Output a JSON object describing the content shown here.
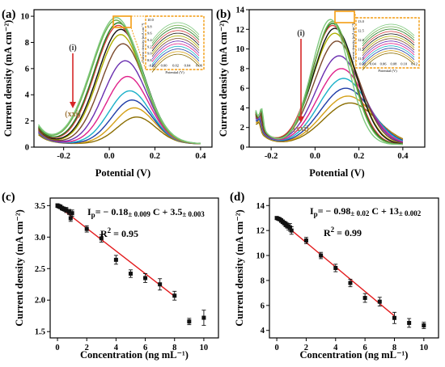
{
  "palette": [
    "#8b6d00",
    "#d4a017",
    "#1f3da8",
    "#1ab0c8",
    "#e0218a",
    "#6a2fb0",
    "#7b4a2c",
    "#b0b000",
    "#111111",
    "#d43c3c",
    "#1f7a1f",
    "#6ab04c",
    "#7fc97f"
  ],
  "fit_color": "#e31a1c",
  "marker_color": "#111111",
  "highlight_color": "#f39c12",
  "arrow_color": "#d62728",
  "arrow_label_color": "#a0783c",
  "panels": [
    {
      "id": "a",
      "label": "(a)",
      "chart_data": {
        "type": "line",
        "xlabel": "Potential (V)",
        "ylabel": "Current density (mA cm⁻²)",
        "xlim": [
          -0.33,
          0.45
        ],
        "ylim": [
          0,
          10.5
        ],
        "xticks": [
          -0.2,
          0,
          0.2,
          0.4
        ],
        "xtick_labels": [
          "-0.2",
          "0.0",
          "0.2",
          "0.4"
        ],
        "yticks": [
          0,
          2,
          4,
          6,
          8,
          10
        ],
        "ytick_labels": [
          "0",
          "2",
          "4",
          "6",
          "8",
          "10"
        ],
        "series_count": 13,
        "series_peaks": [
          {
            "x": 0.12,
            "y": 2.3
          },
          {
            "x": 0.11,
            "y": 3.0
          },
          {
            "x": 0.1,
            "y": 3.6
          },
          {
            "x": 0.09,
            "y": 4.3
          },
          {
            "x": 0.08,
            "y": 5.4
          },
          {
            "x": 0.07,
            "y": 6.6
          },
          {
            "x": 0.06,
            "y": 7.9
          },
          {
            "x": 0.05,
            "y": 8.6
          },
          {
            "x": 0.05,
            "y": 9.0
          },
          {
            "x": 0.04,
            "y": 9.3
          },
          {
            "x": 0.04,
            "y": 9.5
          },
          {
            "x": 0.03,
            "y": 9.7
          },
          {
            "x": 0.03,
            "y": 9.9
          }
        ],
        "start_values": [
          0.7,
          0.8,
          0.85,
          0.9,
          0.95,
          1.0,
          1.05,
          1.1,
          1.15,
          1.2,
          1.25,
          1.3,
          1.4
        ],
        "annotations": {
          "top": "(i)",
          "bottom": "(xxi)"
        },
        "inset": {
          "xlabel": "Potential (V)",
          "ylabel": "Current density (mA cm⁻²)",
          "xtick_labels": [
            "-0.02",
            "0.00",
            "0.02",
            "0.04",
            "0.06"
          ],
          "ytick_labels": [
            "8.8",
            "9.0",
            "9.2",
            "9.4",
            "9.6",
            "9.8",
            "10.0"
          ]
        }
      }
    },
    {
      "id": "b",
      "label": "(b)",
      "chart_data": {
        "type": "line",
        "xlabel": "Potential (V)",
        "ylabel": "Current density (mA cm⁻²)",
        "xlim": [
          -0.3,
          0.5
        ],
        "ylim": [
          0,
          14
        ],
        "xticks": [
          -0.2,
          0,
          0.2,
          0.4
        ],
        "xtick_labels": [
          "-0.2",
          "0.0",
          "0.2",
          "0.4"
        ],
        "yticks": [
          0,
          2,
          4,
          6,
          8,
          10,
          12,
          14
        ],
        "ytick_labels": [
          "0",
          "2",
          "4",
          "6",
          "8",
          "10",
          "12",
          "14"
        ],
        "series_count": 13,
        "series_peaks": [
          {
            "x": 0.16,
            "y": 4.5
          },
          {
            "x": 0.15,
            "y": 5.2
          },
          {
            "x": 0.14,
            "y": 6.0
          },
          {
            "x": 0.13,
            "y": 7.0
          },
          {
            "x": 0.12,
            "y": 8.0
          },
          {
            "x": 0.11,
            "y": 9.3
          },
          {
            "x": 0.1,
            "y": 10.8
          },
          {
            "x": 0.09,
            "y": 11.6
          },
          {
            "x": 0.09,
            "y": 12.1
          },
          {
            "x": 0.08,
            "y": 12.4
          },
          {
            "x": 0.08,
            "y": 12.6
          },
          {
            "x": 0.08,
            "y": 12.8
          },
          {
            "x": 0.07,
            "y": 13.0
          }
        ],
        "start_values": [
          2.0,
          2.2,
          2.4,
          2.6,
          2.7,
          2.8,
          2.9,
          3.0,
          3.1,
          3.2,
          3.3,
          3.4,
          3.5
        ],
        "annotations": {
          "top": "(i)",
          "bottom": "(xxi)"
        },
        "inset": {
          "xlabel": "Potential (V)",
          "ylabel": "Current density (mA cm⁻²)",
          "xtick_labels": [
            "0.02",
            "0.04",
            "0.06",
            "0.08",
            "0.10",
            "0.12"
          ],
          "ytick_labels": [
            "11.0",
            "11.5",
            "12.0",
            "12.5",
            "13.0"
          ]
        }
      }
    },
    {
      "id": "c",
      "label": "(c)",
      "chart_data": {
        "type": "scatter",
        "xlabel": "Concentration (ng mL⁻¹)",
        "ylabel": "Current density (mA cm⁻²)",
        "xlim": [
          -0.5,
          11
        ],
        "ylim": [
          1.4,
          3.62
        ],
        "xticks": [
          0,
          2,
          4,
          6,
          8,
          10
        ],
        "xtick_labels": [
          "0",
          "2",
          "4",
          "6",
          "8",
          "10"
        ],
        "yticks": [
          1.5,
          2.0,
          2.5,
          3.0,
          3.5
        ],
        "ytick_labels": [
          "1.5",
          "2.0",
          "2.5",
          "3.0",
          "3.5"
        ],
        "points": [
          {
            "x": 0.0,
            "y": 3.5,
            "err": 0.03
          },
          {
            "x": 0.1,
            "y": 3.49,
            "err": 0.03
          },
          {
            "x": 0.2,
            "y": 3.48,
            "err": 0.03
          },
          {
            "x": 0.3,
            "y": 3.46,
            "err": 0.03
          },
          {
            "x": 0.4,
            "y": 3.45,
            "err": 0.03
          },
          {
            "x": 0.5,
            "y": 3.44,
            "err": 0.03
          },
          {
            "x": 0.6,
            "y": 3.43,
            "err": 0.04
          },
          {
            "x": 0.8,
            "y": 3.4,
            "err": 0.04
          },
          {
            "x": 0.9,
            "y": 3.3,
            "err": 0.05
          },
          {
            "x": 1.0,
            "y": 3.38,
            "err": 0.05
          },
          {
            "x": 2.0,
            "y": 3.13,
            "err": 0.05
          },
          {
            "x": 3.0,
            "y": 2.98,
            "err": 0.06
          },
          {
            "x": 4.0,
            "y": 2.64,
            "err": 0.07
          },
          {
            "x": 5.0,
            "y": 2.42,
            "err": 0.06
          },
          {
            "x": 6.0,
            "y": 2.35,
            "err": 0.07
          },
          {
            "x": 7.0,
            "y": 2.25,
            "err": 0.09
          },
          {
            "x": 8.0,
            "y": 2.07,
            "err": 0.07
          },
          {
            "x": 9.0,
            "y": 1.66,
            "err": 0.05
          },
          {
            "x": 10.0,
            "y": 1.72,
            "err": 0.12
          }
        ],
        "fit": {
          "slope": -0.18,
          "intercept": 3.5,
          "x_range": [
            0,
            8
          ]
        },
        "equation": {
          "lhs": "I",
          "lhs_sub": "p",
          "eq": "= − 0.18",
          "e1": "± 0.009",
          "mid": " C + 3.5",
          "e2": "± 0.003"
        },
        "r2": {
          "label": "R",
          "sup": "2",
          "value": " = 0.95"
        }
      }
    },
    {
      "id": "d",
      "label": "(d)",
      "chart_data": {
        "type": "scatter",
        "xlabel": "Concentration (ng mL⁻¹)",
        "ylabel": "Current density (mA cm⁻²)",
        "xlim": [
          -0.5,
          11
        ],
        "ylim": [
          3.4,
          14.6
        ],
        "xticks": [
          0,
          2,
          4,
          6,
          8,
          10
        ],
        "xtick_labels": [
          "0",
          "2",
          "4",
          "6",
          "8",
          "10"
        ],
        "yticks": [
          4,
          6,
          8,
          10,
          12,
          14
        ],
        "ytick_labels": [
          "4",
          "6",
          "8",
          "10",
          "12",
          "14"
        ],
        "points": [
          {
            "x": 0.0,
            "y": 13.0,
            "err": 0.12
          },
          {
            "x": 0.1,
            "y": 12.95,
            "err": 0.12
          },
          {
            "x": 0.2,
            "y": 12.9,
            "err": 0.12
          },
          {
            "x": 0.3,
            "y": 12.8,
            "err": 0.15
          },
          {
            "x": 0.4,
            "y": 12.7,
            "err": 0.15
          },
          {
            "x": 0.5,
            "y": 12.6,
            "err": 0.15
          },
          {
            "x": 0.6,
            "y": 12.5,
            "err": 0.2
          },
          {
            "x": 0.7,
            "y": 12.4,
            "err": 0.2
          },
          {
            "x": 0.8,
            "y": 12.3,
            "err": 0.25
          },
          {
            "x": 0.9,
            "y": 12.25,
            "err": 0.3
          },
          {
            "x": 1.0,
            "y": 12.0,
            "err": 0.3
          },
          {
            "x": 2.0,
            "y": 11.2,
            "err": 0.25
          },
          {
            "x": 3.0,
            "y": 10.0,
            "err": 0.25
          },
          {
            "x": 4.0,
            "y": 9.0,
            "err": 0.3
          },
          {
            "x": 5.0,
            "y": 7.8,
            "err": 0.3
          },
          {
            "x": 6.0,
            "y": 6.6,
            "err": 0.35
          },
          {
            "x": 7.0,
            "y": 6.3,
            "err": 0.35
          },
          {
            "x": 8.0,
            "y": 5.0,
            "err": 0.45
          },
          {
            "x": 9.0,
            "y": 4.6,
            "err": 0.35
          },
          {
            "x": 10.0,
            "y": 4.4,
            "err": 0.25
          }
        ],
        "fit": {
          "slope": -0.98,
          "intercept": 13,
          "x_range": [
            0,
            8
          ]
        },
        "equation": {
          "lhs": "I",
          "lhs_sub": "p",
          "eq": "= − 0.98",
          "e1": "± 0.02",
          "mid": " C + 13",
          "e2": "± 0.002"
        },
        "r2": {
          "label": "R",
          "sup": "2",
          "value": " = 0.99"
        }
      }
    }
  ]
}
